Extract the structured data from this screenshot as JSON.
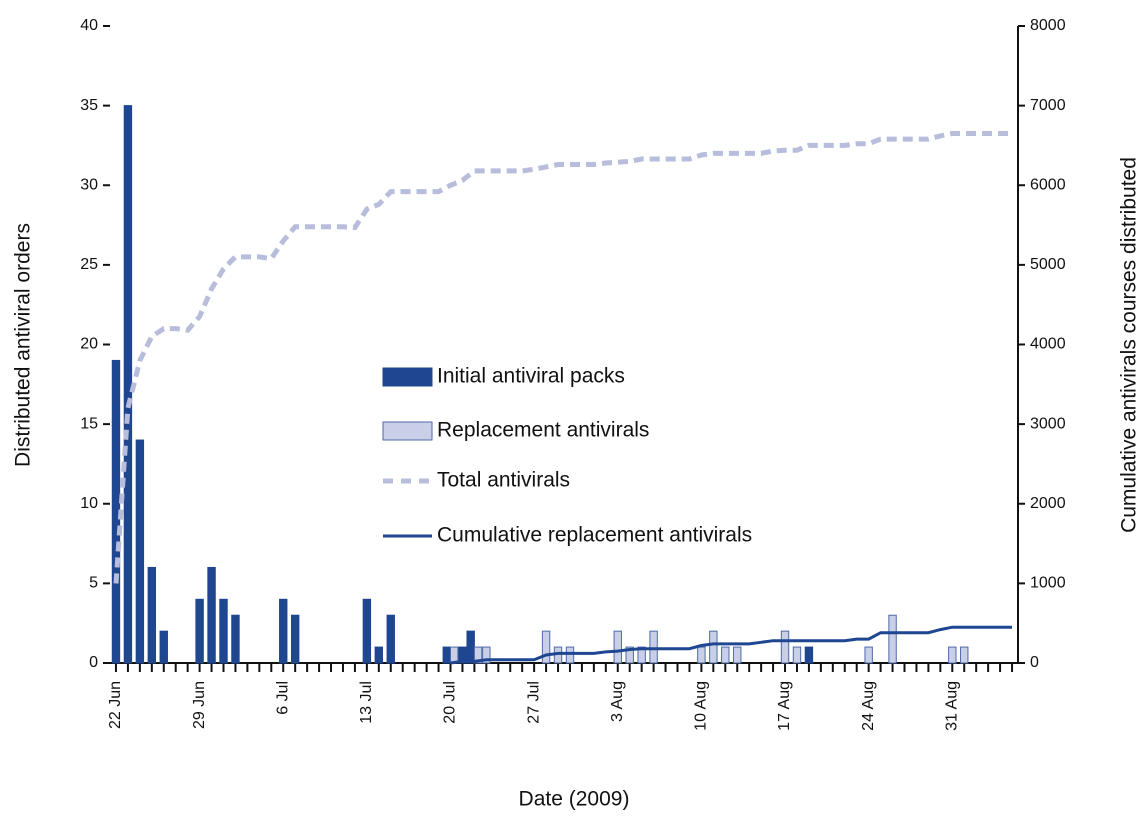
{
  "chart_data": {
    "type": "bar",
    "xlabel": "Date (2009)",
    "ylabel": "Distributed antiviral orders",
    "y2label": "Cumulative antivirals courses distributed",
    "categories": [
      "22 Jun",
      null,
      null,
      null,
      null,
      null,
      null,
      "29 Jun",
      null,
      null,
      null,
      null,
      null,
      null,
      "6 Jul",
      null,
      null,
      null,
      null,
      null,
      null,
      "13 Jul",
      null,
      null,
      null,
      null,
      null,
      null,
      "20 Jul",
      null,
      null,
      null,
      null,
      null,
      null,
      "27 Jul",
      null,
      null,
      null,
      null,
      null,
      null,
      "3 Aug",
      null,
      null,
      null,
      null,
      null,
      null,
      "10 Aug",
      null,
      null,
      null,
      null,
      null,
      null,
      "17 Aug",
      null,
      null,
      null,
      null,
      null,
      null,
      "24 Aug",
      null,
      null,
      null,
      null,
      null,
      null,
      "31 Aug",
      null,
      null,
      null,
      null,
      null
    ],
    "ylim": [
      0,
      40
    ],
    "yticks": [
      0,
      5,
      10,
      15,
      20,
      25,
      30,
      35,
      40
    ],
    "y2lim": [
      0,
      8000
    ],
    "y2ticks": [
      0,
      1000,
      2000,
      3000,
      4000,
      5000,
      6000,
      7000,
      8000
    ],
    "series": [
      {
        "name": "Initial antiviral packs",
        "type": "bar",
        "color": "#1f4690",
        "values": [
          19,
          35,
          14,
          6,
          2,
          0,
          0,
          4,
          6,
          4,
          3,
          0,
          0,
          0,
          4,
          3,
          0,
          0,
          0,
          0,
          0,
          4,
          1,
          3,
          0,
          0,
          0,
          0,
          1,
          1,
          2,
          0,
          0,
          0,
          0,
          0,
          0,
          0,
          0,
          0,
          0,
          0,
          0,
          0,
          0,
          0,
          0,
          0,
          0,
          0,
          0,
          0,
          0,
          0,
          0,
          0,
          0,
          0,
          1,
          0,
          0,
          0,
          0,
          0,
          0,
          0,
          0,
          0,
          0,
          0,
          0,
          0,
          0,
          0,
          0,
          0
        ]
      },
      {
        "name": "Replacement antivirals",
        "type": "bar",
        "color": "#c9cfe7",
        "values": [
          0,
          0,
          0,
          0,
          0,
          0,
          0,
          0,
          0,
          0,
          0,
          0,
          0,
          0,
          0,
          0,
          0,
          0,
          0,
          0,
          0,
          0,
          0,
          0,
          0,
          0,
          0,
          0,
          1,
          0,
          1,
          1,
          0,
          0,
          0,
          0,
          2,
          1,
          1,
          0,
          0,
          0,
          2,
          1,
          1,
          2,
          0,
          0,
          0,
          1,
          2,
          1,
          1,
          0,
          0,
          0,
          2,
          1,
          0,
          0,
          0,
          0,
          0,
          1,
          0,
          3,
          0,
          0,
          0,
          0,
          1,
          1,
          0,
          0,
          0,
          0
        ]
      },
      {
        "name": "Total antivirals",
        "type": "line",
        "axis": "y2",
        "dashed": true,
        "color": "#b7bdda",
        "values": [
          1000,
          3200,
          3800,
          4100,
          4200,
          4200,
          4180,
          4350,
          4700,
          4950,
          5100,
          5100,
          5100,
          5080,
          5300,
          5480,
          5480,
          5480,
          5480,
          5480,
          5470,
          5700,
          5760,
          5920,
          5920,
          5920,
          5920,
          5920,
          6000,
          6060,
          6180,
          6180,
          6180,
          6180,
          6180,
          6200,
          6230,
          6260,
          6260,
          6260,
          6260,
          6280,
          6290,
          6300,
          6330,
          6330,
          6330,
          6330,
          6330,
          6380,
          6400,
          6400,
          6400,
          6400,
          6400,
          6430,
          6440,
          6440,
          6500,
          6500,
          6500,
          6500,
          6520,
          6520,
          6580,
          6580,
          6580,
          6580,
          6580,
          6620,
          6650,
          6650,
          6650,
          6650,
          6650,
          6650
        ]
      },
      {
        "name": "Cumulative replacement antivirals",
        "type": "line",
        "axis": "y2",
        "color": "#1f4690",
        "values": [
          null,
          null,
          null,
          null,
          null,
          null,
          null,
          null,
          null,
          null,
          null,
          null,
          null,
          null,
          null,
          null,
          null,
          null,
          null,
          null,
          null,
          null,
          null,
          null,
          null,
          null,
          null,
          null,
          0,
          20,
          20,
          40,
          40,
          40,
          40,
          40,
          100,
          120,
          120,
          120,
          120,
          140,
          150,
          170,
          180,
          180,
          180,
          180,
          180,
          220,
          240,
          240,
          240,
          240,
          260,
          280,
          280,
          280,
          280,
          280,
          280,
          280,
          300,
          300,
          380,
          380,
          380,
          380,
          380,
          420,
          450,
          450,
          450,
          450,
          450,
          450
        ]
      }
    ]
  }
}
